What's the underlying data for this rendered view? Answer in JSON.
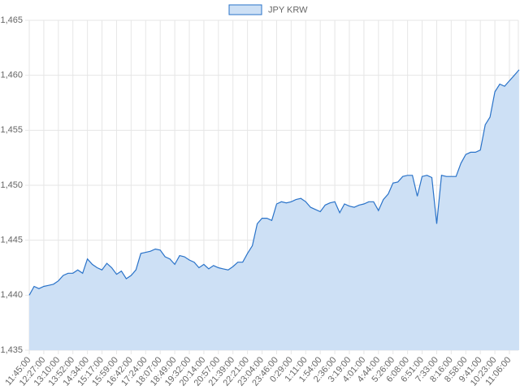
{
  "chart_data": {
    "type": "line",
    "categories": [
      "11:45:00",
      null,
      null,
      "12:27:00",
      null,
      null,
      "13:10:00",
      null,
      null,
      "13:52:00",
      null,
      null,
      "14:34:00",
      null,
      null,
      "15:17:00",
      null,
      null,
      "15:59:00",
      null,
      null,
      "16:42:00",
      null,
      null,
      "17:24:00",
      null,
      null,
      "18:07:00",
      null,
      null,
      "18:49:00",
      null,
      null,
      "19:32:00",
      null,
      null,
      "20:14:00",
      null,
      null,
      "20:57:00",
      null,
      null,
      "21:39:00",
      null,
      null,
      "22:21:00",
      null,
      null,
      "23:04:00",
      null,
      null,
      "23:46:00",
      null,
      null,
      "0:29:00",
      null,
      null,
      "1:11:00",
      null,
      null,
      "1:54:00",
      null,
      null,
      "2:36:00",
      null,
      null,
      "3:19:00",
      null,
      null,
      "4:01:00",
      null,
      null,
      "4:44:00",
      null,
      null,
      "5:26:00",
      null,
      null,
      "6:08:00",
      null,
      null,
      "6:51:00",
      null,
      null,
      "7:33:00",
      null,
      null,
      "8:16:00",
      null,
      null,
      "8:58:00",
      null,
      null,
      "9:41:00",
      null,
      null,
      "10:23:00",
      null,
      null,
      "11:06:00",
      null,
      null
    ],
    "series": [
      {
        "name": "JPY KRW",
        "color": "#2a73c9",
        "fill": "#cde0f5",
        "values": [
          1440.0,
          1440.8,
          1440.6,
          1440.8,
          1440.9,
          1441.0,
          1441.3,
          1441.8,
          1442.0,
          1442.0,
          1442.3,
          1442.0,
          1443.3,
          1442.8,
          1442.5,
          1442.3,
          1442.9,
          1442.5,
          1441.9,
          1442.2,
          1441.5,
          1441.8,
          1442.3,
          1443.8,
          1443.9,
          1444.0,
          1444.2,
          1444.1,
          1443.5,
          1443.3,
          1442.8,
          1443.6,
          1443.5,
          1443.2,
          1443.0,
          1442.5,
          1442.8,
          1442.4,
          1442.7,
          1442.5,
          1442.4,
          1442.3,
          1442.6,
          1443.0,
          1443.0,
          1443.8,
          1444.5,
          1446.5,
          1447.0,
          1447.0,
          1446.8,
          1448.3,
          1448.5,
          1448.4,
          1448.5,
          1448.7,
          1448.8,
          1448.5,
          1448.0,
          1447.8,
          1447.6,
          1448.2,
          1448.4,
          1448.5,
          1447.5,
          1448.3,
          1448.1,
          1448.0,
          1448.2,
          1448.3,
          1448.5,
          1448.5,
          1447.7,
          1448.7,
          1449.2,
          1450.2,
          1450.3,
          1450.8,
          1450.9,
          1450.9,
          1449.0,
          1450.8,
          1450.9,
          1450.7,
          1446.5,
          1450.9,
          1450.8,
          1450.8,
          1450.8,
          1452.0,
          1452.8,
          1453.0,
          1453.0,
          1453.2,
          1455.5,
          1456.2,
          1458.5,
          1459.2,
          1459.0,
          1459.5,
          1460.0,
          1460.5
        ]
      }
    ],
    "ylim": [
      1435,
      1465
    ],
    "yticks": [
      {
        "value": 1435,
        "label": "1,435"
      },
      {
        "value": 1440,
        "label": "1,440"
      },
      {
        "value": 1445,
        "label": "1,445"
      },
      {
        "value": 1450,
        "label": "1,450"
      },
      {
        "value": 1455,
        "label": "1,455"
      },
      {
        "value": 1460,
        "label": "1,460"
      },
      {
        "value": 1465,
        "label": "1,465"
      }
    ],
    "grid": true,
    "legend": "top"
  }
}
